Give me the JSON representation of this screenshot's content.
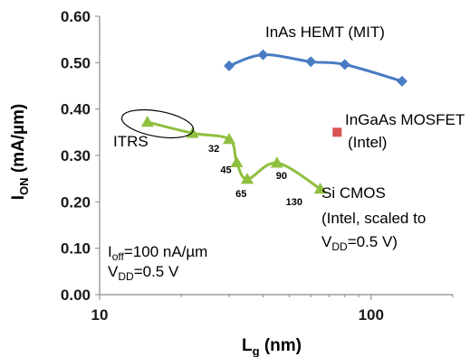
{
  "chart_data": {
    "type": "line",
    "x_scale": "log",
    "xlim": [
      10,
      200
    ],
    "ylim": [
      0,
      0.6
    ],
    "x_ticks": [
      "10",
      "100"
    ],
    "y_ticks": [
      "0.00",
      "0.10",
      "0.20",
      "0.30",
      "0.40",
      "0.50",
      "0.60"
    ],
    "y_tick_values": [
      0,
      0.1,
      0.2,
      0.3,
      0.4,
      0.5,
      0.6
    ],
    "xlabel": {
      "main": "L",
      "sub": "g",
      "rest": " (nm)"
    },
    "ylabel": {
      "main": "I",
      "sub": "ON",
      "rest": " (mA/µm)"
    },
    "grid": false,
    "series": [
      {
        "name": "InAs HEMT (MIT)",
        "color": "#4a7cc4",
        "marker": "diamond",
        "x": [
          30,
          40,
          60,
          80,
          130
        ],
        "y": [
          0.493,
          0.517,
          0.502,
          0.496,
          0.46
        ]
      },
      {
        "name": "Si CMOS",
        "color": "#8fbf3f",
        "marker": "triangle",
        "x": [
          15,
          22,
          30,
          32,
          35,
          45,
          65
        ],
        "y": [
          0.372,
          0.348,
          0.335,
          0.285,
          0.249,
          0.284,
          0.228
        ],
        "point_labels": [
          "",
          "",
          "32",
          "45",
          "65",
          "90",
          "130"
        ]
      },
      {
        "name": "InGaAs MOSFET",
        "color": "#d9534f",
        "marker": "square",
        "x": [
          75
        ],
        "y": [
          0.35
        ]
      }
    ],
    "annotations": {
      "inas_label": "InAs HEMT (MIT)",
      "ingaas_line1": "InGaAs MOSFET",
      "ingaas_line2": "(Intel)",
      "itrs_label": "ITRS",
      "si_line1": "Si CMOS",
      "si_line2": "(Intel, scaled to",
      "si_line3_main": "V",
      "si_line3_sub": "DD",
      "si_line3_rest": "=0.5 V)",
      "cond1_main": "I",
      "cond1_sub": "off",
      "cond1_rest": "=100 nA/µm",
      "cond2_main": "V",
      "cond2_sub": "DD",
      "cond2_rest": "=0.5 V"
    }
  }
}
